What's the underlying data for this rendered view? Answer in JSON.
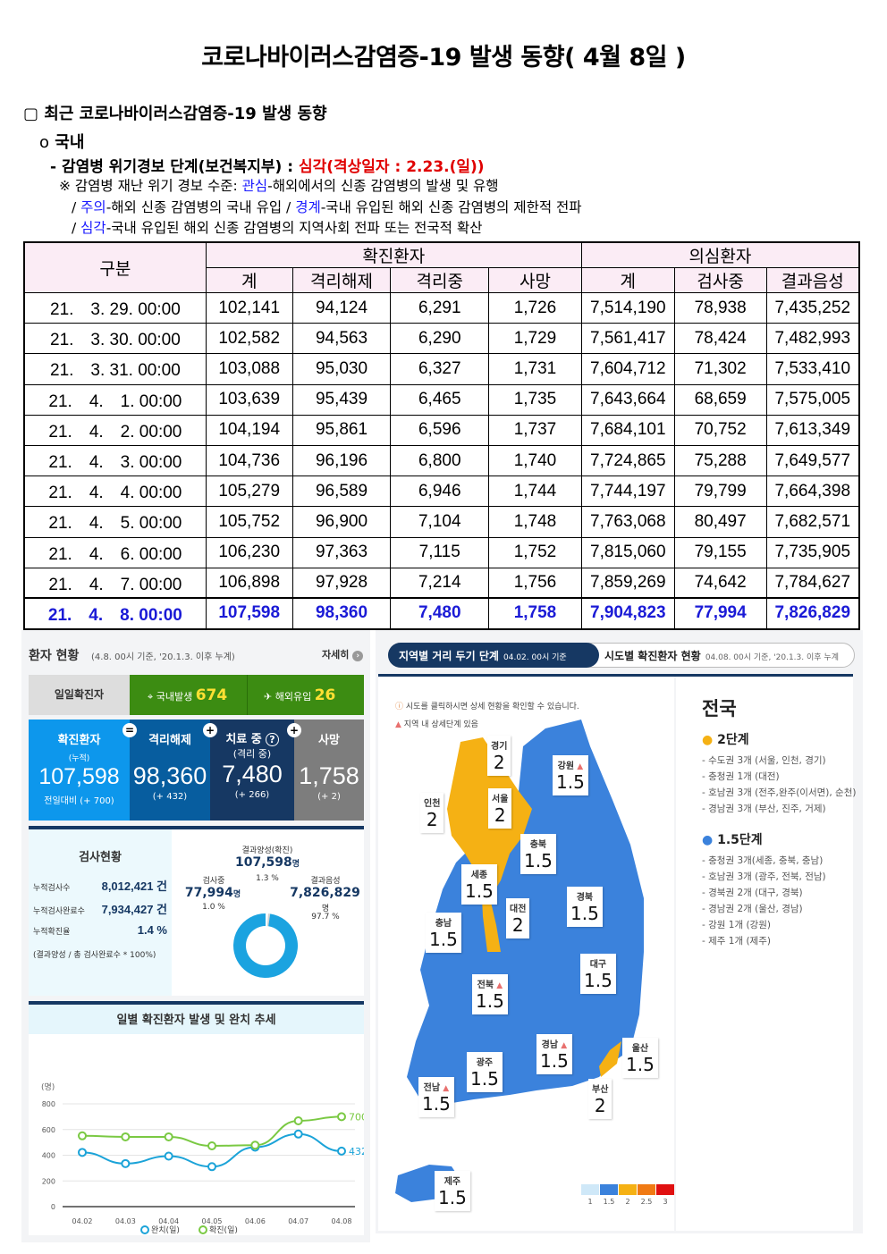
{
  "title": "코로나바이러스감염증-19 발생 동향( 4월 8일 )",
  "section": {
    "heading": "최근 코로나바이러스감염증-19 발생 동향",
    "checkbox": "▢",
    "sub": "국내",
    "bullet": "o",
    "alert_label": "- 감염병 위기경보 단계(보건복지부) : ",
    "alert_value": "심각(격상일자 : 2.23.(일))",
    "note_prefix": "※ 감염병 재난 위기 경보 수준: ",
    "levels": [
      {
        "name": "관심",
        "desc": "-해외에서의 신종 감염병의 발생 및 유행"
      },
      {
        "name": "주의",
        "desc": "-해외 신종 감염병의 국내 유입 / "
      },
      {
        "name": "경계",
        "desc": "-국내 유입된 해외 신종 감염병의 제한적 전파"
      },
      {
        "name": "심각",
        "desc": "-국내 유입된 해외 신종 감염병의 지역사회 전파 또는 전국적 확산"
      }
    ]
  },
  "table": {
    "col_group": "구분",
    "confirmed_group": "확진환자",
    "suspected_group": "의심환자",
    "columns": [
      "계",
      "격리해제",
      "격리중",
      "사망",
      "계",
      "검사중",
      "결과음성"
    ],
    "rows": [
      [
        "21.　3. 29. 00:00",
        "102,141",
        "94,124",
        "6,291",
        "1,726",
        "7,514,190",
        "78,938",
        "7,435,252"
      ],
      [
        "21.　3. 30. 00:00",
        "102,582",
        "94,563",
        "6,290",
        "1,729",
        "7,561,417",
        "78,424",
        "7,482,993"
      ],
      [
        "21.　3. 31. 00:00",
        "103,088",
        "95,030",
        "6,327",
        "1,731",
        "7,604,712",
        "71,302",
        "7,533,410"
      ],
      [
        "21.　4.　1. 00:00",
        "103,639",
        "95,439",
        "6,465",
        "1,735",
        "7,643,664",
        "68,659",
        "7,575,005"
      ],
      [
        "21.　4.　2. 00:00",
        "104,194",
        "95,861",
        "6,596",
        "1,737",
        "7,684,101",
        "70,752",
        "7,613,349"
      ],
      [
        "21.　4.　3. 00:00",
        "104,736",
        "96,196",
        "6,800",
        "1,740",
        "7,724,865",
        "75,288",
        "7,649,577"
      ],
      [
        "21.　4.　4. 00:00",
        "105,279",
        "96,589",
        "6,946",
        "1,744",
        "7,744,197",
        "79,799",
        "7,664,398"
      ],
      [
        "21.　4.　5. 00:00",
        "105,752",
        "96,900",
        "7,104",
        "1,748",
        "7,763,068",
        "80,497",
        "7,682,571"
      ],
      [
        "21.　4.　6. 00:00",
        "106,230",
        "97,363",
        "7,115",
        "1,752",
        "7,815,060",
        "79,155",
        "7,735,905"
      ],
      [
        "21.　4.　7. 00:00",
        "106,898",
        "97,928",
        "7,214",
        "1,756",
        "7,859,269",
        "74,642",
        "7,784,627"
      ],
      [
        "21.　4.　8. 00:00",
        "107,598",
        "98,360",
        "7,480",
        "1,758",
        "7,904,823",
        "77,994",
        "7,826,829"
      ]
    ]
  },
  "patients": {
    "title": "환자 현황",
    "subtitle": "(4.8. 00시 기준, '20.1.3. 이후 누계)",
    "more": "자세히",
    "daily_label": "일일확진자",
    "domestic_label": "국내발생",
    "domestic": "674",
    "imported_label": "해외유입",
    "imported": "26",
    "confirmed_label": "확진환자",
    "cum": "(누적)",
    "confirmed": "107,598",
    "confirmed_delta": "전일대비 (+ 700)",
    "released_label": "격리해제",
    "released": "98,360",
    "released_delta": "(+ 432)",
    "treating_label": "치료 중",
    "treating_sub": "(격리 중)",
    "treating": "7,480",
    "treating_delta": "(+ 266)",
    "death_label": "사망",
    "death": "1,758",
    "death_delta": "(+ 2)",
    "eq": "=",
    "plus": "+"
  },
  "tests": {
    "title": "검사현황",
    "rows": [
      {
        "label": "누적검사수",
        "value": "8,012,421 건"
      },
      {
        "label": "누적검사완료수",
        "value": "7,934,427 건"
      },
      {
        "label": "누적확진율",
        "value": "1.4 %"
      }
    ],
    "note": "(결과양성 / 총 검사완료수 * 100%)",
    "donut": {
      "positive_label": "결과양성(확진)",
      "positive": "107,598",
      "positive_unit": "명",
      "positive_pct": "1.3 %",
      "testing_label": "검사중",
      "testing": "77,994",
      "testing_unit": "명",
      "testing_pct": "1.0 %",
      "negative_label": "결과음성",
      "negative": "7,826,829",
      "negative_unit": "명",
      "negative_pct": "97.7 %",
      "fractions": [
        1.3,
        1.0,
        97.7
      ],
      "colors": [
        "#ffffff",
        "#d0d0d0",
        "#1ba3e0"
      ]
    }
  },
  "chart_data": {
    "type": "line",
    "title": "일별 확진환자 발생 및 완치 추세",
    "ylabel": "(명)",
    "ylim": [
      0,
      800
    ],
    "yticks": [
      "0",
      "200",
      "400",
      "600",
      "800"
    ],
    "categories": [
      "04.02",
      "04.03",
      "04.04",
      "04.05",
      "04.06",
      "04.07",
      "04.08"
    ],
    "series": [
      {
        "name": "완치(일)",
        "color": "#1ba3d8",
        "values": [
          422,
          335,
          393,
          311,
          463,
          565,
          432
        ]
      },
      {
        "name": "확진(일)",
        "color": "#7ac943",
        "values": [
          551,
          543,
          543,
          473,
          478,
          668,
          700
        ]
      }
    ],
    "end_labels": [
      "432",
      "700"
    ],
    "legend": "bottom"
  },
  "map": {
    "tab_active": "지역별 거리 두기 단계",
    "tab_active_date": "04.02. 00시 기준",
    "tab2": "시도별 확진환자 현황",
    "tab2_date": "04.08. 00시 기준, '20.1.3. 이후 누계",
    "hint": "시도를 클릭하시면 상세 현황을 확인할 수 있습니다.",
    "warn": "지역 내 상세단계 있음",
    "regions": [
      {
        "name": "경기",
        "level": "2"
      },
      {
        "name": "인천",
        "level": "2"
      },
      {
        "name": "서울",
        "level": "2"
      },
      {
        "name": "강원",
        "level": "1.5",
        "warn": true
      },
      {
        "name": "충북",
        "level": "1.5"
      },
      {
        "name": "세종",
        "level": "1.5"
      },
      {
        "name": "충남",
        "level": "1.5"
      },
      {
        "name": "대전",
        "level": "2"
      },
      {
        "name": "경북",
        "level": "1.5"
      },
      {
        "name": "대구",
        "level": "1.5"
      },
      {
        "name": "전북",
        "level": "1.5",
        "warn": true
      },
      {
        "name": "경남",
        "level": "1.5",
        "warn": true
      },
      {
        "name": "울산",
        "level": "1.5"
      },
      {
        "name": "광주",
        "level": "1.5"
      },
      {
        "name": "전남",
        "level": "1.5",
        "warn": true
      },
      {
        "name": "부산",
        "level": "2"
      },
      {
        "name": "제주",
        "level": "1.5"
      }
    ],
    "scale": [
      "1",
      "1.5",
      "2",
      "2.5",
      "3"
    ],
    "scale_colors": [
      "#cfe8f8",
      "#3b82dc",
      "#f5b114",
      "#f07a14",
      "#e01010"
    ],
    "side_title": "전국",
    "level2": "2단계",
    "level2_items": [
      "- 수도권 3개 (서울, 인천, 경기)",
      "- 충청권 1개 (대전)",
      "- 호남권 3개 (전주,완주(이서면), 순천)",
      "- 경남권 3개 (부산, 진주, 거제)"
    ],
    "level15": "1.5단계",
    "level15_items": [
      "- 충청권 3개(세종, 충북, 충남)",
      "- 호남권 3개 (광주, 전북, 전남)",
      "- 경북권 2개 (대구, 경북)",
      "- 경남권 2개 (울산, 경남)",
      "- 강원 1개 (강원)",
      "- 제주 1개 (제주)"
    ]
  }
}
